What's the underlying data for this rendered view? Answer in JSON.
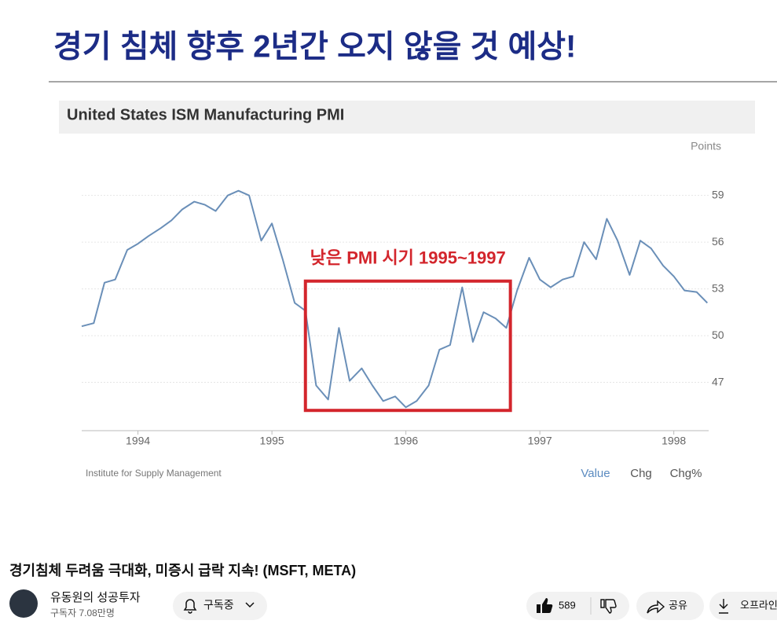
{
  "slide": {
    "title": "경기 침체 향후 2년간 오지 않을 것 예상!"
  },
  "chart_data": {
    "type": "line",
    "title": "United States ISM Manufacturing PMI",
    "y_label": "Points",
    "x": [
      1993.58,
      1993.67,
      1993.75,
      1993.83,
      1993.92,
      1994.0,
      1994.08,
      1994.17,
      1994.25,
      1994.33,
      1994.42,
      1994.5,
      1994.58,
      1994.67,
      1994.75,
      1994.83,
      1994.92,
      1995.0,
      1995.08,
      1995.17,
      1995.25,
      1995.33,
      1995.42,
      1995.5,
      1995.58,
      1995.67,
      1995.75,
      1995.83,
      1995.92,
      1996.0,
      1996.08,
      1996.17,
      1996.25,
      1996.33,
      1996.42,
      1996.5,
      1996.58,
      1996.67,
      1996.75,
      1996.83,
      1996.92,
      1997.0,
      1997.08,
      1997.17,
      1997.25,
      1997.33,
      1997.42,
      1997.5,
      1997.58,
      1997.67,
      1997.75,
      1997.83,
      1997.92,
      1998.0,
      1998.08,
      1998.17,
      1998.25
    ],
    "values": [
      50.6,
      50.8,
      53.4,
      53.6,
      55.5,
      55.9,
      56.4,
      56.9,
      57.4,
      58.1,
      58.6,
      58.4,
      58.0,
      59.0,
      59.3,
      59.0,
      56.1,
      57.2,
      54.9,
      52.1,
      51.6,
      46.8,
      45.9,
      50.5,
      47.1,
      47.9,
      46.8,
      45.8,
      46.1,
      45.4,
      45.8,
      46.8,
      49.1,
      49.4,
      53.1,
      49.6,
      51.5,
      51.1,
      50.5,
      52.9,
      55.0,
      53.6,
      53.1,
      53.6,
      53.8,
      56.0,
      54.9,
      57.5,
      56.1,
      53.9,
      56.1,
      55.6,
      54.5,
      53.8,
      52.9,
      52.8,
      52.1
    ],
    "color": "#6a8fb8",
    "xlim": [
      1993.58,
      1998.26
    ],
    "xticks": [
      1994,
      1995,
      1996,
      1997,
      1998
    ],
    "ylim": [
      43.9,
      60.9
    ],
    "yticks": [
      47,
      50,
      53,
      56,
      59
    ],
    "grid": true,
    "annotation": {
      "text": "낮은 PMI 시기 1995~1997",
      "x": [
        1995.25,
        1996.78
      ],
      "y": [
        45.2,
        53.5
      ],
      "color": "#d3252c"
    },
    "source": "Institute for Supply Management",
    "tabs": [
      "Value",
      "Chg",
      "Chg%"
    ]
  },
  "video": {
    "title": "경기침체 두려움 극대화, 미증시 급락 지속! (MSFT, META)",
    "channel": "유동원의 성공투자",
    "subscribers": "구독자 7.08만명",
    "subscribe_button": "구독중",
    "likes": 589,
    "share": "공유",
    "download": "오프라인"
  }
}
